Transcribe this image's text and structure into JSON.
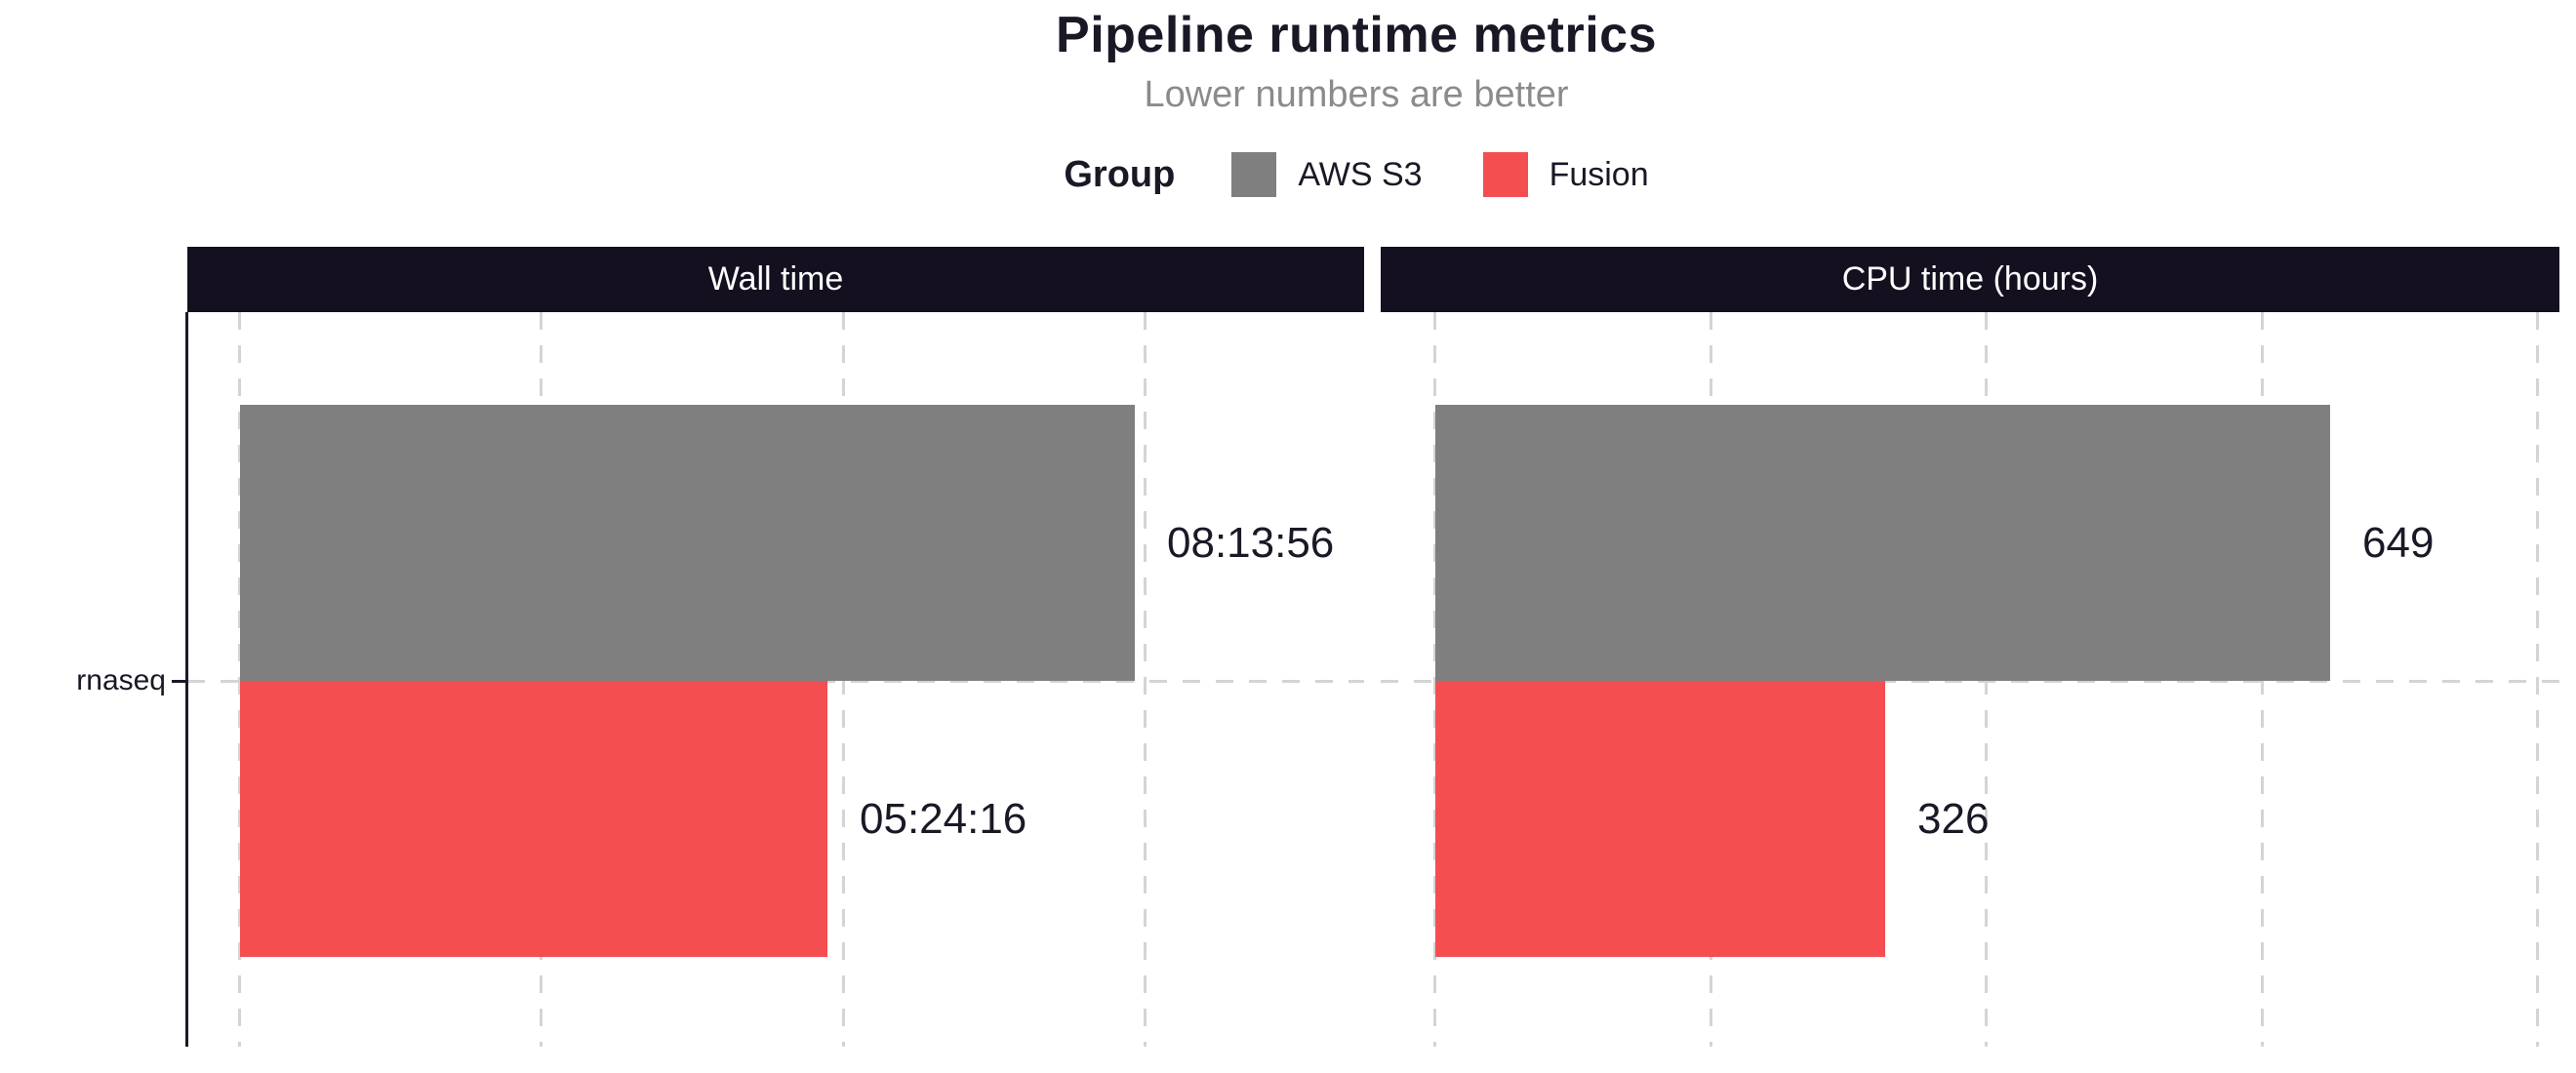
{
  "title": "Pipeline runtime metrics",
  "subtitle": "Lower numbers are better",
  "legend": {
    "title": "Group",
    "items": [
      {
        "label": "AWS S3",
        "color": "#7f7f7f"
      },
      {
        "label": "Fusion",
        "color": "#f44e51"
      }
    ]
  },
  "colors": {
    "title_text": "#1b1826",
    "subtitle_text": "#8b8b8b",
    "facet_strip_background": "#14101f",
    "facet_strip_text": "#ffffff",
    "gridline": "#d4d4d4",
    "aws_s3_gray": "#7f7f7f",
    "fusion_red": "#f44e51"
  },
  "chart_data": [
    {
      "type": "bar",
      "orientation": "horizontal",
      "facet": "Wall time",
      "categories": [
        "rnaseq"
      ],
      "unit": "seconds",
      "series": [
        {
          "name": "AWS S3",
          "values": [
            29636
          ],
          "labels": [
            "08:13:56"
          ],
          "color": "#7f7f7f"
        },
        {
          "name": "Fusion",
          "values": [
            19456
          ],
          "labels": [
            "05:24:16"
          ],
          "color": "#f44e51"
        }
      ],
      "x_axis": {
        "min": 0,
        "max": 37280,
        "grid_interval": 10000,
        "tick_labels_shown": false
      },
      "grid": "dashed-vertical-and-category-line",
      "legend_position": "top",
      "value_labels": "outside-bar-end"
    },
    {
      "type": "bar",
      "orientation": "horizontal",
      "facet": "CPU time (hours)",
      "categories": [
        "rnaseq"
      ],
      "unit": "hours",
      "series": [
        {
          "name": "AWS S3",
          "values": [
            649
          ],
          "labels": [
            "649"
          ],
          "color": "#7f7f7f"
        },
        {
          "name": "Fusion",
          "values": [
            326
          ],
          "labels": [
            "326"
          ],
          "color": "#f44e51"
        }
      ],
      "x_axis": {
        "min": 0,
        "max": 816,
        "grid_interval": 200,
        "tick_labels_shown": false
      },
      "grid": "dashed-vertical-and-category-line",
      "legend_position": "top",
      "value_labels": "outside-bar-end"
    }
  ]
}
